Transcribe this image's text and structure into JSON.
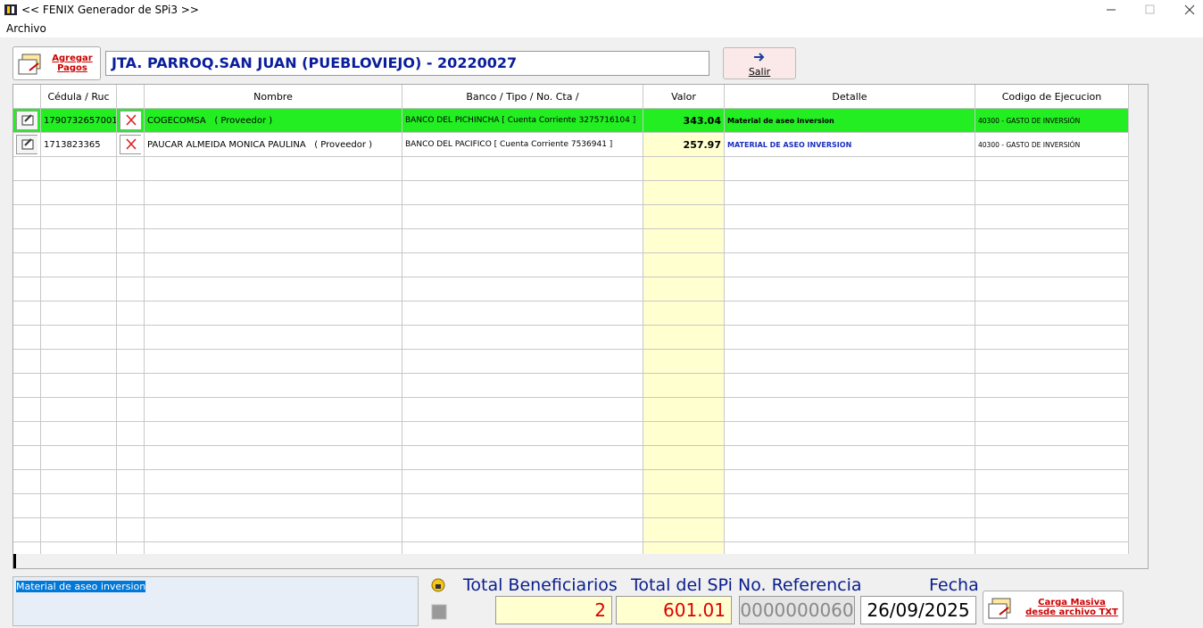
{
  "window": {
    "title": "<< FENIX Generador de SPi3 >>"
  },
  "menu": [
    "Archivo"
  ],
  "toolbar": {
    "add_button": [
      "Agregar",
      "Pagos"
    ],
    "entity": "JTA. PARROQ.SAN JUAN (PUEBLOVIEJO) - 20220027",
    "exit_button": "Salir"
  },
  "table": {
    "columns": [
      "Cédula / Ruc",
      "Nombre",
      "Banco / Tipo / No. Cta /",
      "Valor",
      "Detalle",
      "Codigo de Ejecucion"
    ],
    "rows": [
      [
        "1790732657001",
        "COGECOMSA   ( Proveedor )",
        "BANCO DEL PICHINCHA [ Cuenta Corriente 3275716104 ]",
        343.04,
        "Material de aseo inversion",
        "40300 - GASTO DE INVERSIÓN"
      ],
      [
        "1713823365",
        "PAUCAR ALMEIDA MONICA PAULINA   ( Proveedor )",
        "BANCO DEL PACIFICO [ Cuenta Corriente 7536941 ]",
        257.97,
        "MATERIAL DE ASEO INVERSION",
        "40300 - GASTO DE INVERSIÓN"
      ]
    ]
  },
  "footer": {
    "detail_text": "Material de aseo inversion",
    "total_beneficiarios_label": "Total Beneficiarios",
    "total_beneficiarios": 2,
    "total_spi_label": "Total del SPi",
    "total_spi": 601.01,
    "referencia_label": "No. Referencia",
    "referencia": "0000000060",
    "fecha_label": "Fecha",
    "fecha": "26/09/2025",
    "carga_button": "Carga Masiva desde archivo TXT"
  }
}
